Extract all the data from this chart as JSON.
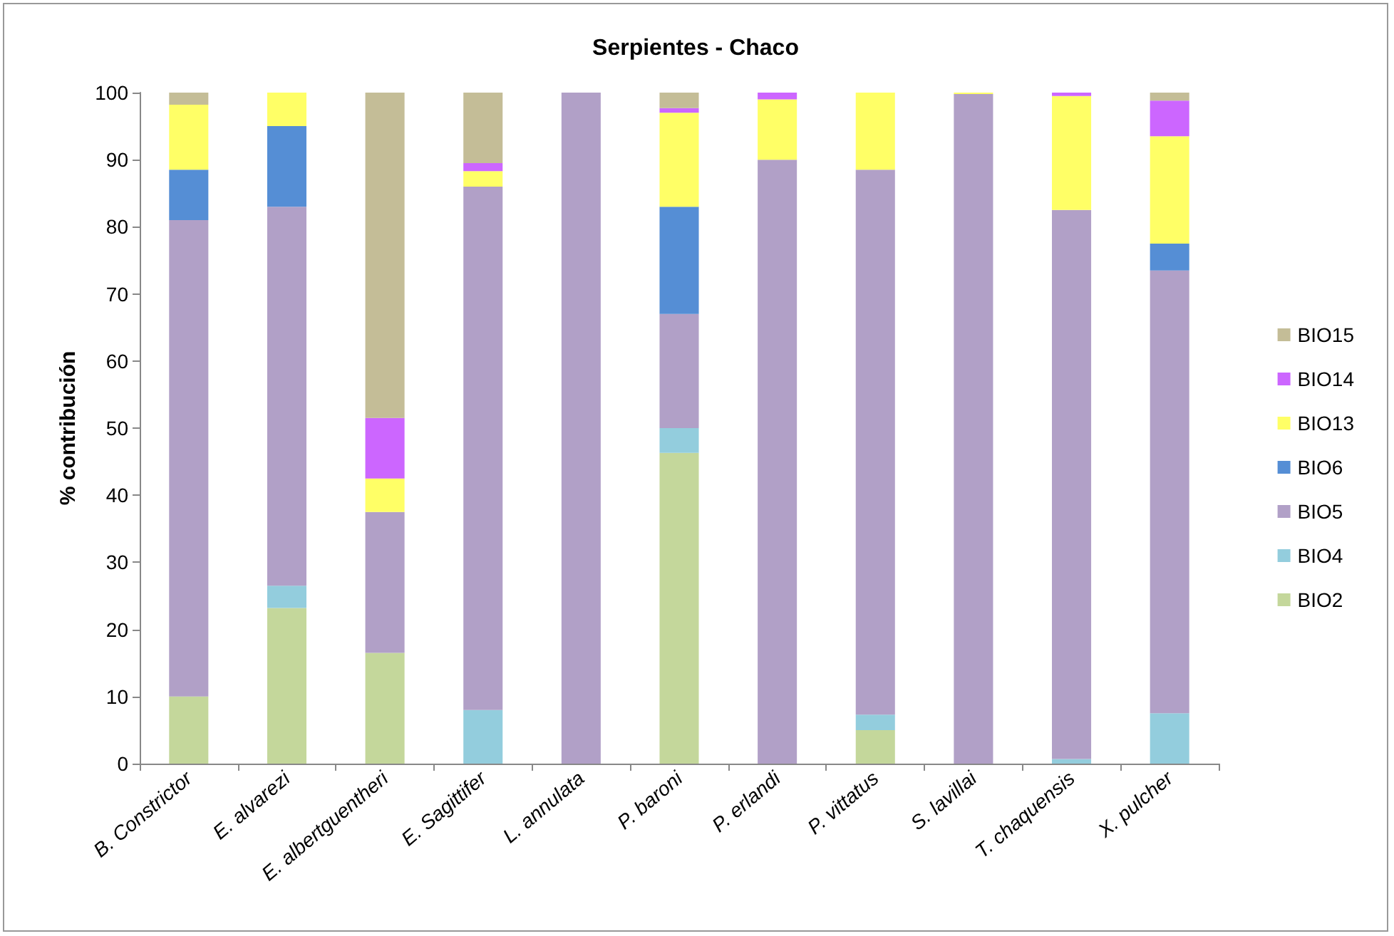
{
  "chart_data": {
    "type": "bar",
    "title": "Serpientes - Chaco",
    "ylabel": "% contribución",
    "stacked": true,
    "legend": "right",
    "grid": false,
    "categories": [
      "B. Constrictor",
      "E. alvarezi",
      "E. albertguentheri",
      "E. Sagittifer",
      "L. annulata",
      "P. baroni",
      "P. erlandi",
      "P. vittatus",
      "S. lavillai",
      "T. chaquensis",
      "X. pulcher"
    ],
    "ylim": [
      0,
      100
    ],
    "yticks": [
      0,
      10,
      20,
      30,
      40,
      50,
      60,
      70,
      80,
      90,
      100
    ],
    "series": [
      {
        "name": "BIO2",
        "color": "#c4d79b",
        "values": [
          10,
          23.2,
          16.5,
          0,
          0,
          46.3,
          0,
          5,
          0,
          0,
          0
        ]
      },
      {
        "name": "BIO4",
        "color": "#93cddd",
        "values": [
          0,
          3.3,
          0,
          8,
          0,
          3.7,
          0,
          2.3,
          0,
          0.7,
          7.5
        ]
      },
      {
        "name": "BIO5",
        "color": "#b1a0c7",
        "values": [
          71,
          56.5,
          21,
          78,
          100,
          17,
          90,
          81.2,
          99.8,
          81.8,
          66
        ]
      },
      {
        "name": "BIO6",
        "color": "#558ed5",
        "values": [
          7.5,
          12,
          0,
          0,
          0,
          16,
          0,
          0,
          0,
          0,
          4
        ]
      },
      {
        "name": "BIO13",
        "color": "#ffff66",
        "values": [
          9.7,
          5,
          5,
          2.3,
          0,
          14,
          9,
          11.5,
          0.2,
          17,
          16
        ]
      },
      {
        "name": "BIO14",
        "color": "#cc66ff",
        "values": [
          0,
          0,
          9,
          1.2,
          0,
          0.7,
          1,
          0,
          0,
          0.5,
          5.3
        ]
      },
      {
        "name": "BIO15",
        "color": "#c4bd97",
        "values": [
          1.8,
          0,
          48.5,
          10.5,
          0,
          2.3,
          0,
          0,
          0,
          0,
          1.2
        ]
      }
    ]
  }
}
